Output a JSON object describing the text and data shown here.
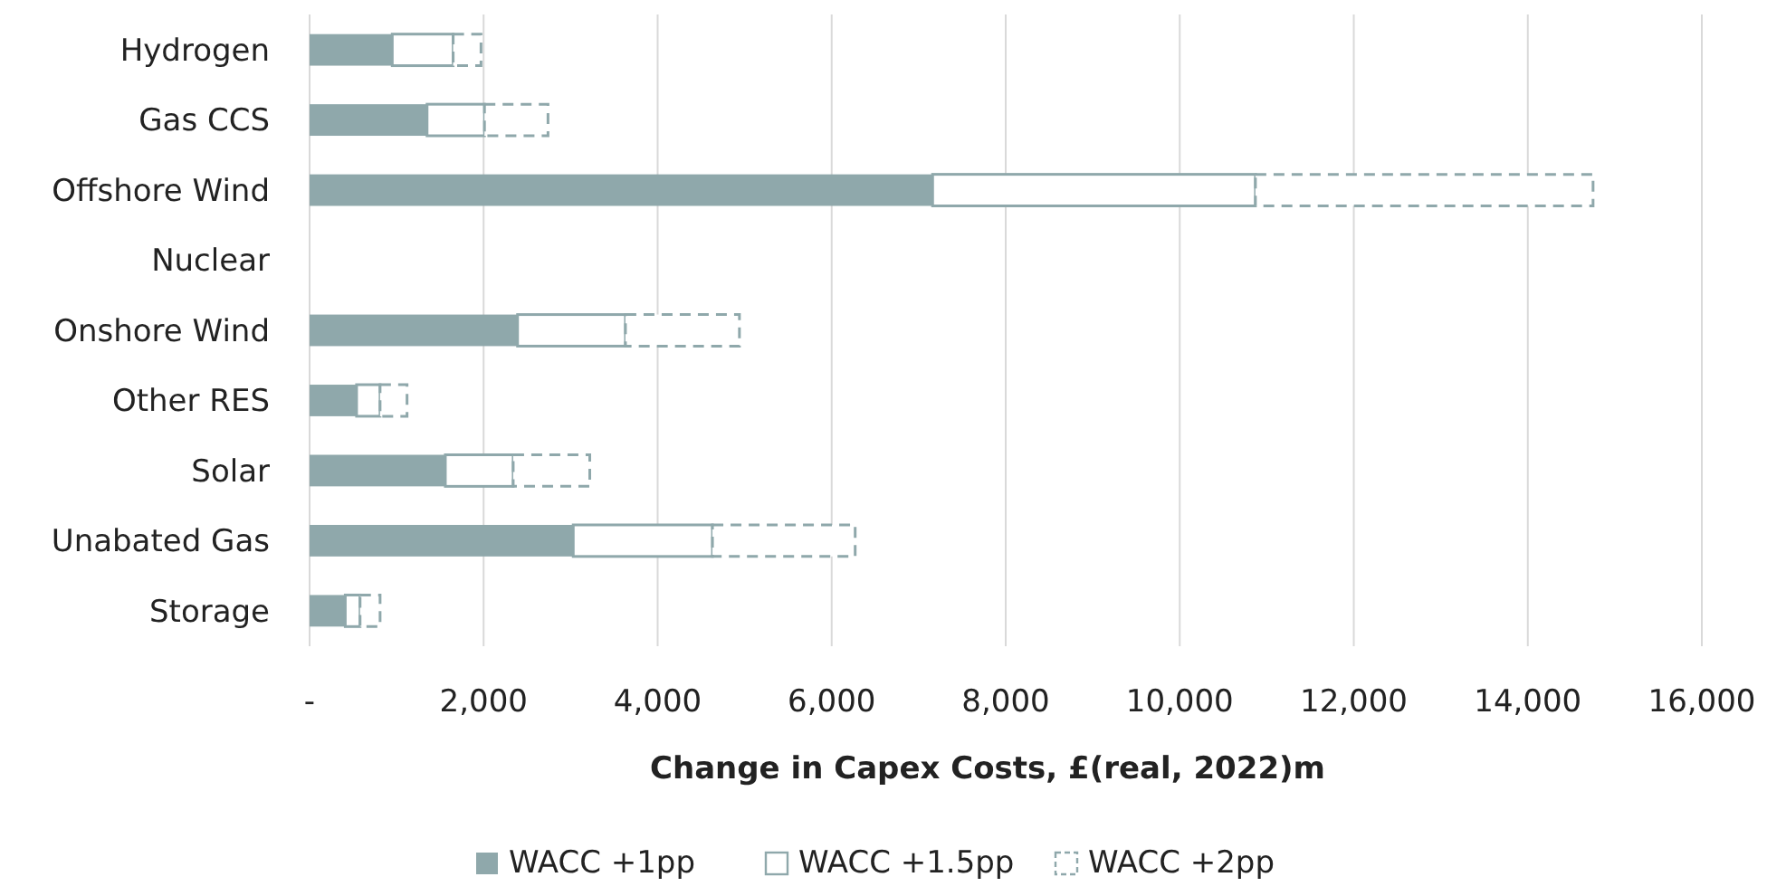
{
  "chart_data": {
    "type": "bar",
    "orientation": "horizontal",
    "stacked": true,
    "categories": [
      "Hydrogen",
      "Gas CCS",
      "Offshore Wind",
      "Nuclear",
      "Onshore Wind",
      "Other RES",
      "Solar",
      "Unabated Gas",
      "Storage"
    ],
    "series": [
      {
        "name": "WACC +1pp",
        "color": "#8fa8ab",
        "values": [
          950,
          1350,
          7160,
          0,
          2390,
          540,
          1560,
          3030,
          410
        ]
      },
      {
        "name": "WACC +1.5pp",
        "color": "#ffffff",
        "values": [
          700,
          660,
          3710,
          0,
          1240,
          270,
          780,
          1600,
          170
        ]
      },
      {
        "name": "WACC +2pp",
        "color": "#ffffff",
        "line_style": "dashed",
        "values": [
          320,
          730,
          3880,
          0,
          1310,
          310,
          880,
          1640,
          230
        ]
      }
    ],
    "xlabel": "Change in Capex Costs, £(real, 2022)m",
    "xlim": [
      0,
      16000
    ],
    "xticks": [
      {
        "value": 0,
        "label": "-"
      },
      {
        "value": 2000,
        "label": "2,000"
      },
      {
        "value": 4000,
        "label": "4,000"
      },
      {
        "value": 6000,
        "label": "6,000"
      },
      {
        "value": 8000,
        "label": "8,000"
      },
      {
        "value": 10000,
        "label": "10,000"
      },
      {
        "value": 12000,
        "label": "12,000"
      },
      {
        "value": 14000,
        "label": "14,000"
      },
      {
        "value": 16000,
        "label": "16,000"
      }
    ],
    "grid": "x",
    "legend": "bottom"
  }
}
